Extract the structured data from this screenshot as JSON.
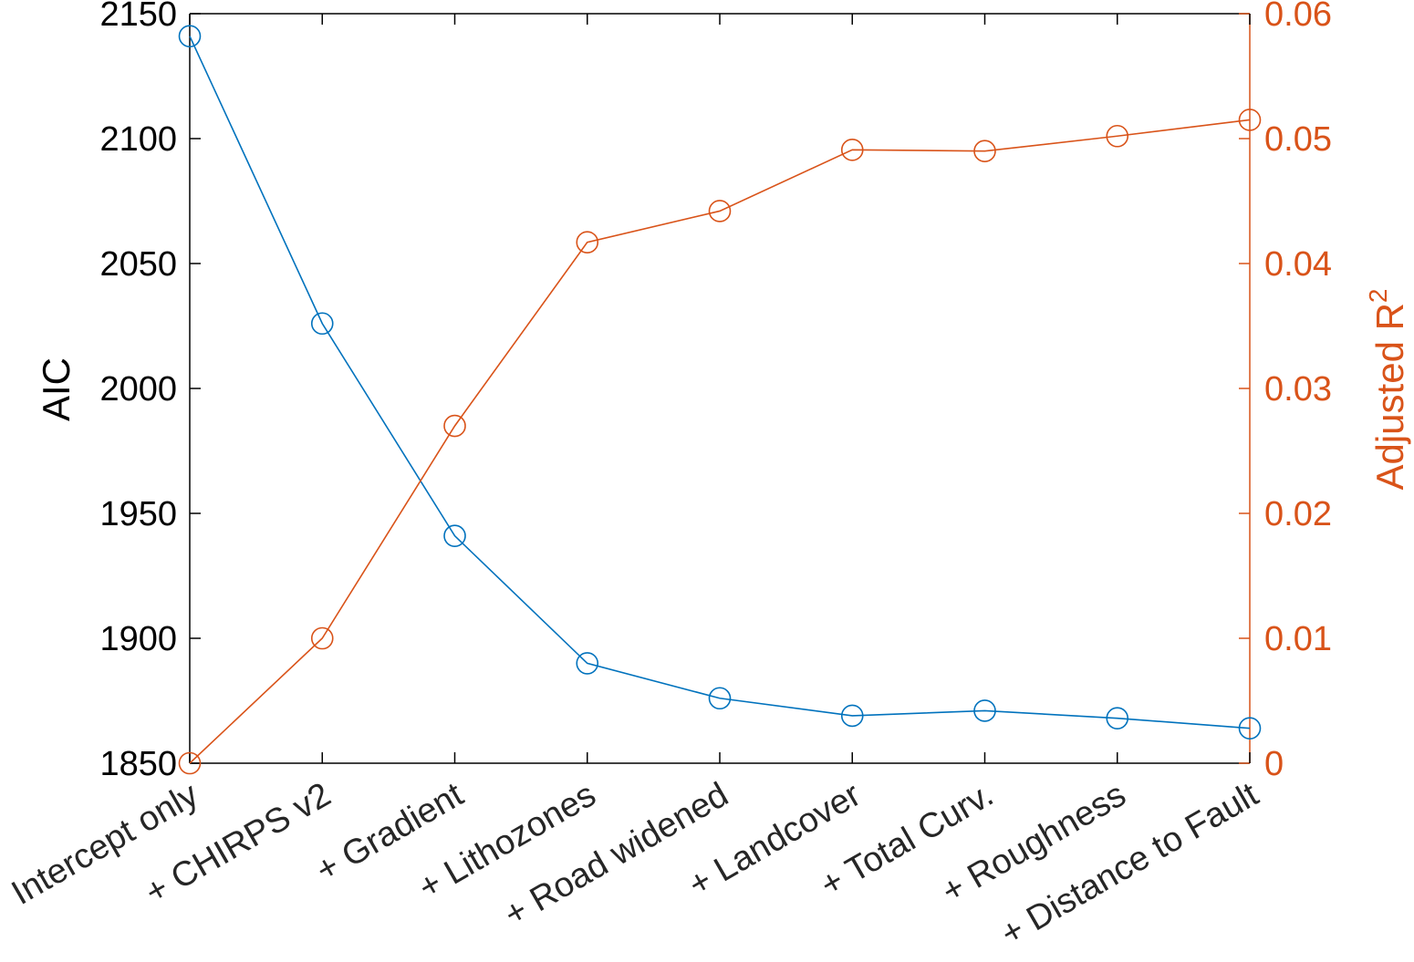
{
  "chart_data": {
    "type": "line",
    "categories": [
      "Intercept only",
      "+ CHIRPS v2",
      "+ Gradient",
      "+ Lithozones",
      "+ Road widened",
      "+ Landcover",
      "+ Total Curv.",
      "+ Roughness",
      "+ Distance to Fault"
    ],
    "left_axis": {
      "label": "AIC",
      "ylim": [
        1850,
        2150
      ],
      "ticks": [
        "1850",
        "1900",
        "1950",
        "2000",
        "2050",
        "2100",
        "2150"
      ],
      "color": "#000000"
    },
    "right_axis": {
      "label_main": "Adjusted R",
      "label_sup": "2",
      "ylim": [
        0,
        0.06
      ],
      "ticks": [
        "0",
        "0.01",
        "0.02",
        "0.03",
        "0.04",
        "0.05",
        "0.06"
      ],
      "color": "#D95319"
    },
    "series": [
      {
        "axis": "left",
        "color": "#0072BD",
        "marker": "circle",
        "values": [
          2141,
          2026,
          1941,
          1890,
          1876,
          1869,
          1871,
          1868,
          1864
        ]
      },
      {
        "axis": "right",
        "color": "#D95319",
        "marker": "circle",
        "values": [
          0.0,
          0.01,
          0.027,
          0.0417,
          0.0442,
          0.0491,
          0.049,
          0.0502,
          0.0515
        ]
      }
    ],
    "grid": false,
    "legend": "none"
  }
}
